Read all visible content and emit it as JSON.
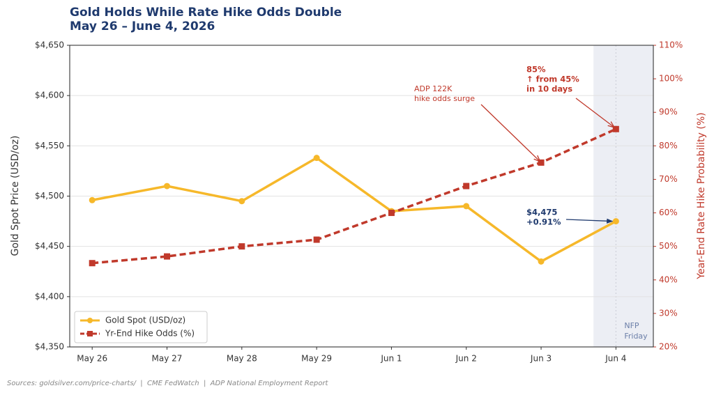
{
  "chart_data": {
    "type": "line",
    "title": "Gold Holds While Rate Hike Odds Double",
    "subtitle": "May 26 – June 4, 2026",
    "ylabel": "Gold Spot Price (USD/oz)",
    "y2label": "Year-End Rate Hike Probability (%)",
    "categories": [
      "May 26",
      "May 27",
      "May 28",
      "May 29",
      "Jun 1",
      "Jun 2",
      "Jun 3",
      "Jun 4"
    ],
    "series": [
      {
        "name": "Gold Spot (USD/oz)",
        "color": "#f6b82a",
        "values": [
          4496,
          4510,
          4495,
          4538,
          4485,
          4490,
          4435,
          4475
        ]
      },
      {
        "name": "Yr-End Hike Odds (%)",
        "color": "#c0392b",
        "axis": "y2",
        "values": [
          45,
          47,
          50,
          52,
          60,
          68,
          75,
          85
        ]
      }
    ],
    "ylim": [
      4350,
      4650
    ],
    "yticks": [
      {
        "value": 4350,
        "label": "$4,350"
      },
      {
        "value": 4400,
        "label": "$4,400"
      },
      {
        "value": 4450,
        "label": "$4,450"
      },
      {
        "value": 4500,
        "label": "$4,500"
      },
      {
        "value": 4550,
        "label": "$4,550"
      },
      {
        "value": 4600,
        "label": "$4,600"
      },
      {
        "value": 4650,
        "label": "$4,650"
      }
    ],
    "y2lim": [
      20,
      110
    ],
    "y2ticks": [
      {
        "value": 20,
        "label": "20%"
      },
      {
        "value": 30,
        "label": "30%"
      },
      {
        "value": 40,
        "label": "40%"
      },
      {
        "value": 50,
        "label": "50%"
      },
      {
        "value": 60,
        "label": "60%"
      },
      {
        "value": 70,
        "label": "70%"
      },
      {
        "value": 80,
        "label": "80%"
      },
      {
        "value": 90,
        "label": "90%"
      },
      {
        "value": 100,
        "label": "100%"
      },
      {
        "value": 110,
        "label": "110%"
      }
    ],
    "grid": true,
    "legend": "lower left",
    "annotations": [
      {
        "text": [
          "ADP 122K",
          "hike odds surge"
        ]
      },
      {
        "text": [
          "85%",
          "↑ from 45%",
          "in 10 days"
        ]
      },
      {
        "text": [
          "$4,475",
          "+0.91%"
        ]
      }
    ],
    "shade_label": [
      "NFP",
      "Friday"
    ],
    "source": "Sources: goldsilver.com/price-charts/  |  CME FedWatch  |  ADP National Employment Report"
  }
}
